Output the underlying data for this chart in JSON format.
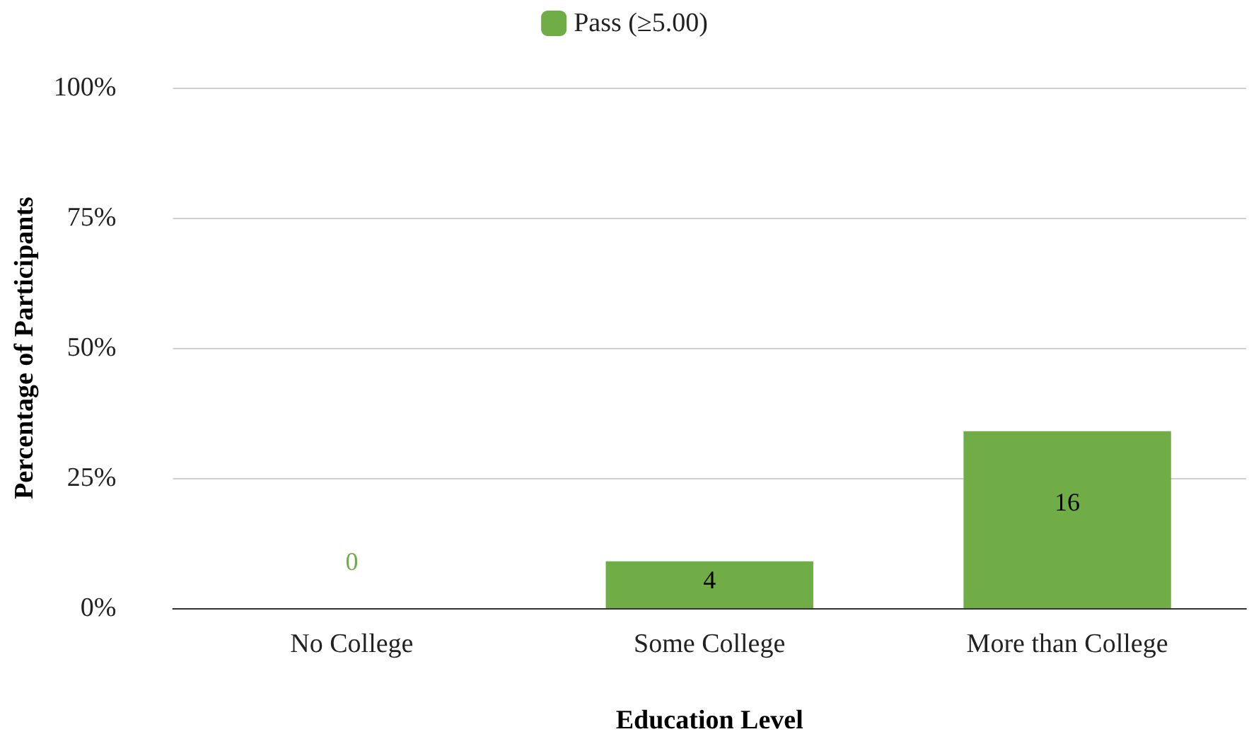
{
  "chart_data": {
    "type": "bar",
    "xlabel": "Education Level",
    "ylabel": "Percentage of Participants",
    "categories": [
      "No College",
      "Some College",
      "More than College"
    ],
    "series": [
      {
        "name": "Pass (≥5.00)",
        "color": "#70ad47",
        "values": [
          0,
          9,
          34
        ]
      }
    ],
    "annotations": [
      "0",
      "4",
      "16"
    ],
    "ylim": [
      0,
      100
    ],
    "yticks": [
      {
        "value": 0,
        "label": "0%"
      },
      {
        "value": 25,
        "label": "25%"
      },
      {
        "value": 50,
        "label": "50%"
      },
      {
        "value": 75,
        "label": "75%"
      },
      {
        "value": 100,
        "label": "100%"
      }
    ],
    "grid": "y",
    "legend": "top"
  }
}
